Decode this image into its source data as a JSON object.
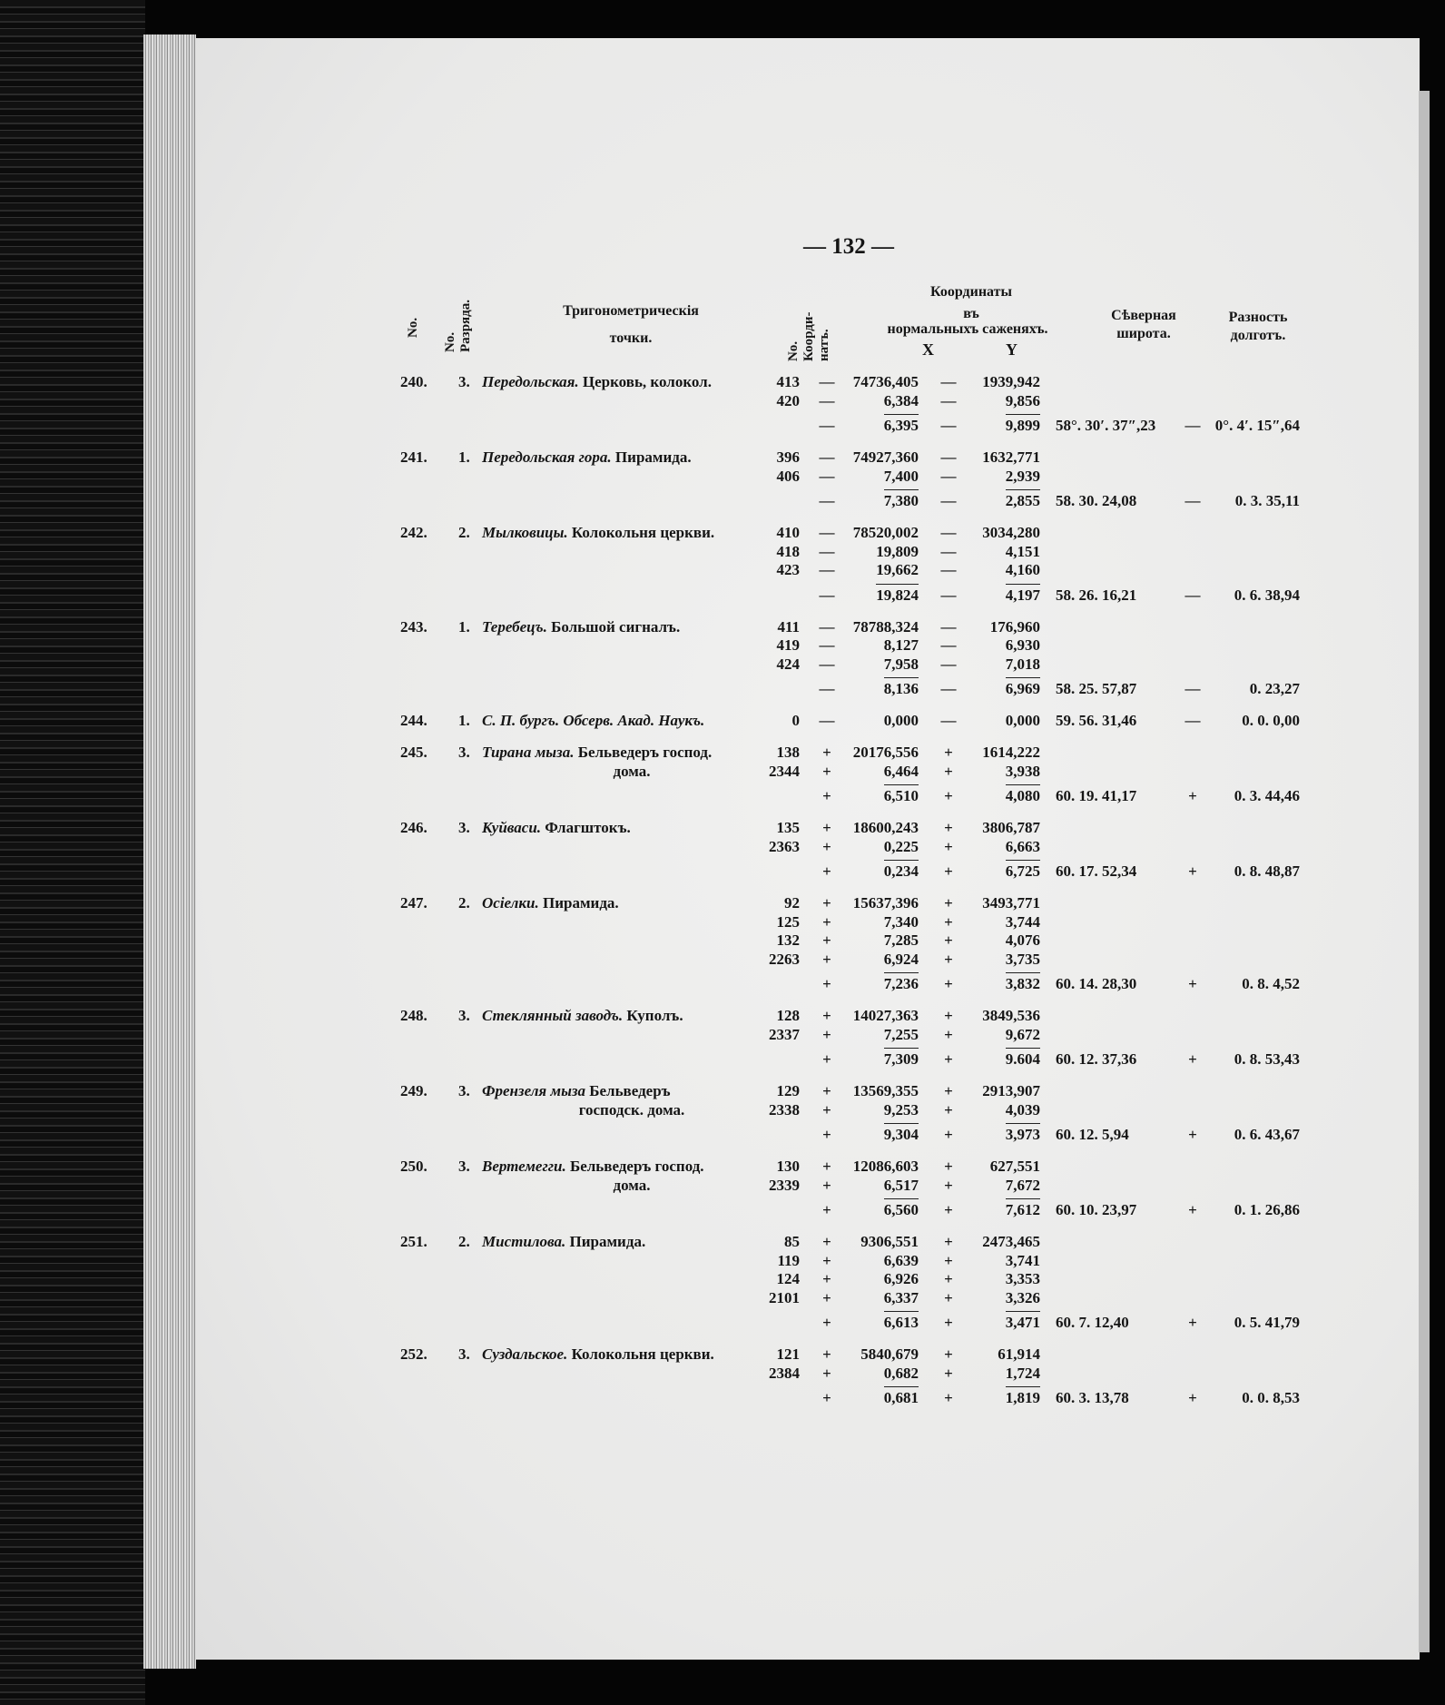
{
  "page_number": "— 132 —",
  "header": {
    "no": "No.",
    "rank": "No. Разряда.",
    "points_1": "Тригонометрическія",
    "points_2": "точки.",
    "coord_no": "No. Коорди-натъ.",
    "coords_1": "Координаты",
    "coords_2": "въ",
    "coords_3": "нормальныхъ саженяхъ.",
    "x": "X",
    "y": "Y",
    "lat_1": "Сѣверная",
    "lat_2": "широта.",
    "lon_1": "Разность",
    "lon_2": "долготъ."
  },
  "entries": [
    {
      "no": "240.",
      "rank": "3.",
      "place": "Передольская.",
      "desc": "Церковь, колокол.",
      "desc2": "",
      "refs": [
        {
          "n": "413",
          "sx": "—",
          "x": "74736,405",
          "sy": "—",
          "y": "1939,942"
        },
        {
          "n": "420",
          "sx": "—",
          "x": "6,384",
          "sy": "—",
          "y": "9,856"
        }
      ],
      "mean": {
        "n": "",
        "sx": "—",
        "x": "6,395",
        "sy": "—",
        "y": "9,899"
      },
      "lat": "58°. 30′. 37″,23",
      "lon_sign": "—",
      "lon": "0°. 4′. 15″,64"
    },
    {
      "no": "241.",
      "rank": "1.",
      "place": "Передольская гора.",
      "desc": "Пирамида.",
      "desc2": "",
      "refs": [
        {
          "n": "396",
          "sx": "—",
          "x": "74927,360",
          "sy": "—",
          "y": "1632,771"
        },
        {
          "n": "406",
          "sx": "—",
          "x": "7,400",
          "sy": "—",
          "y": "2,939"
        }
      ],
      "mean": {
        "n": "",
        "sx": "—",
        "x": "7,380",
        "sy": "—",
        "y": "2,855"
      },
      "lat": "58. 30. 24,08",
      "lon_sign": "—",
      "lon": "0. 3. 35,11"
    },
    {
      "no": "242.",
      "rank": "2.",
      "place": "Мылковицы.",
      "desc": "Колокольня церкви.",
      "desc2": "",
      "refs": [
        {
          "n": "410",
          "sx": "—",
          "x": "78520,002",
          "sy": "—",
          "y": "3034,280"
        },
        {
          "n": "418",
          "sx": "—",
          "x": "19,809",
          "sy": "—",
          "y": "4,151"
        },
        {
          "n": "423",
          "sx": "—",
          "x": "19,662",
          "sy": "—",
          "y": "4,160"
        }
      ],
      "mean": {
        "n": "",
        "sx": "—",
        "x": "19,824",
        "sy": "—",
        "y": "4,197"
      },
      "lat": "58. 26. 16,21",
      "lon_sign": "—",
      "lon": "0. 6. 38,94"
    },
    {
      "no": "243.",
      "rank": "1.",
      "place": "Теребецъ.",
      "desc": "Большой сигналъ.",
      "desc2": "",
      "refs": [
        {
          "n": "411",
          "sx": "—",
          "x": "78788,324",
          "sy": "—",
          "y": "176,960"
        },
        {
          "n": "419",
          "sx": "—",
          "x": "8,127",
          "sy": "—",
          "y": "6,930"
        },
        {
          "n": "424",
          "sx": "—",
          "x": "7,958",
          "sy": "—",
          "y": "7,018"
        }
      ],
      "mean": {
        "n": "",
        "sx": "—",
        "x": "8,136",
        "sy": "—",
        "y": "6,969"
      },
      "lat": "58. 25. 57,87",
      "lon_sign": "—",
      "lon": "0. 23,27"
    },
    {
      "no": "244.",
      "rank": "1.",
      "place": "С. П. бургъ. Обсерв. Акад. Наукъ.",
      "desc": "",
      "desc2": "",
      "refs": [],
      "mean": {
        "n": "0",
        "sx": "—",
        "x": "0,000",
        "sy": "—",
        "y": "0,000"
      },
      "lat": "59. 56. 31,46",
      "lon_sign": "—",
      "lon": "0. 0. 0,00"
    },
    {
      "no": "245.",
      "rank": "3.",
      "place": "Тирана мыза.",
      "desc": "Бельведеръ господ.",
      "desc2": "дома.",
      "refs": [
        {
          "n": "138",
          "sx": "+",
          "x": "20176,556",
          "sy": "+",
          "y": "1614,222"
        },
        {
          "n": "2344",
          "sx": "+",
          "x": "6,464",
          "sy": "+",
          "y": "3,938"
        }
      ],
      "mean": {
        "n": "",
        "sx": "+",
        "x": "6,510",
        "sy": "+",
        "y": "4,080"
      },
      "lat": "60. 19. 41,17",
      "lon_sign": "+",
      "lon": "0. 3. 44,46"
    },
    {
      "no": "246.",
      "rank": "3.",
      "place": "Куйваси.",
      "desc": "Флагштокъ.",
      "desc2": "",
      "refs": [
        {
          "n": "135",
          "sx": "+",
          "x": "18600,243",
          "sy": "+",
          "y": "3806,787"
        },
        {
          "n": "2363",
          "sx": "+",
          "x": "0,225",
          "sy": "+",
          "y": "6,663"
        }
      ],
      "mean": {
        "n": "",
        "sx": "+",
        "x": "0,234",
        "sy": "+",
        "y": "6,725"
      },
      "lat": "60. 17. 52,34",
      "lon_sign": "+",
      "lon": "0. 8. 48,87"
    },
    {
      "no": "247.",
      "rank": "2.",
      "place": "Осiелки.",
      "desc": "Пирамида.",
      "desc2": "",
      "refs": [
        {
          "n": "92",
          "sx": "+",
          "x": "15637,396",
          "sy": "+",
          "y": "3493,771"
        },
        {
          "n": "125",
          "sx": "+",
          "x": "7,340",
          "sy": "+",
          "y": "3,744"
        },
        {
          "n": "132",
          "sx": "+",
          "x": "7,285",
          "sy": "+",
          "y": "4,076"
        },
        {
          "n": "2263",
          "sx": "+",
          "x": "6,924",
          "sy": "+",
          "y": "3,735"
        }
      ],
      "mean": {
        "n": "",
        "sx": "+",
        "x": "7,236",
        "sy": "+",
        "y": "3,832"
      },
      "lat": "60. 14. 28,30",
      "lon_sign": "+",
      "lon": "0. 8. 4,52"
    },
    {
      "no": "248.",
      "rank": "3.",
      "place": "Стеклянный заводъ.",
      "desc": "Куполъ.",
      "desc2": "",
      "refs": [
        {
          "n": "128",
          "sx": "+",
          "x": "14027,363",
          "sy": "+",
          "y": "3849,536"
        },
        {
          "n": "2337",
          "sx": "+",
          "x": "7,255",
          "sy": "+",
          "y": "9,672"
        }
      ],
      "mean": {
        "n": "",
        "sx": "+",
        "x": "7,309",
        "sy": "+",
        "y": "9.604"
      },
      "lat": "60. 12. 37,36",
      "lon_sign": "+",
      "lon": "0. 8. 53,43"
    },
    {
      "no": "249.",
      "rank": "3.",
      "place": "Френзеля мыза",
      "desc": "Бельведеръ",
      "desc2": "господск. дома.",
      "refs": [
        {
          "n": "129",
          "sx": "+",
          "x": "13569,355",
          "sy": "+",
          "y": "2913,907"
        },
        {
          "n": "2338",
          "sx": "+",
          "x": "9,253",
          "sy": "+",
          "y": "4,039"
        }
      ],
      "mean": {
        "n": "",
        "sx": "+",
        "x": "9,304",
        "sy": "+",
        "y": "3,973"
      },
      "lat": "60. 12. 5,94",
      "lon_sign": "+",
      "lon": "0. 6. 43,67"
    },
    {
      "no": "250.",
      "rank": "3.",
      "place": "Вертемегги.",
      "desc": "Бельведеръ господ.",
      "desc2": "дома.",
      "refs": [
        {
          "n": "130",
          "sx": "+",
          "x": "12086,603",
          "sy": "+",
          "y": "627,551"
        },
        {
          "n": "2339",
          "sx": "+",
          "x": "6,517",
          "sy": "+",
          "y": "7,672"
        }
      ],
      "mean": {
        "n": "",
        "sx": "+",
        "x": "6,560",
        "sy": "+",
        "y": "7,612"
      },
      "lat": "60. 10. 23,97",
      "lon_sign": "+",
      "lon": "0. 1. 26,86"
    },
    {
      "no": "251.",
      "rank": "2.",
      "place": "Мистилова.",
      "desc": "Пирамида.",
      "desc2": "",
      "refs": [
        {
          "n": "85",
          "sx": "+",
          "x": "9306,551",
          "sy": "+",
          "y": "2473,465"
        },
        {
          "n": "119",
          "sx": "+",
          "x": "6,639",
          "sy": "+",
          "y": "3,741"
        },
        {
          "n": "124",
          "sx": "+",
          "x": "6,926",
          "sy": "+",
          "y": "3,353"
        },
        {
          "n": "2101",
          "sx": "+",
          "x": "6,337",
          "sy": "+",
          "y": "3,326"
        }
      ],
      "mean": {
        "n": "",
        "sx": "+",
        "x": "6,613",
        "sy": "+",
        "y": "3,471"
      },
      "lat": "60. 7. 12,40",
      "lon_sign": "+",
      "lon": "0. 5. 41,79"
    },
    {
      "no": "252.",
      "rank": "3.",
      "place": "Суздальское.",
      "desc": "Колокольня церкви.",
      "desc2": "",
      "refs": [
        {
          "n": "121",
          "sx": "+",
          "x": "5840,679",
          "sy": "+",
          "y": "61,914"
        },
        {
          "n": "2384",
          "sx": "+",
          "x": "0,682",
          "sy": "+",
          "y": "1,724"
        }
      ],
      "mean": {
        "n": "",
        "sx": "+",
        "x": "0,681",
        "sy": "+",
        "y": "1,819"
      },
      "lat": "60. 3. 13,78",
      "lon_sign": "+",
      "lon": "0. 0. 8,53"
    }
  ]
}
